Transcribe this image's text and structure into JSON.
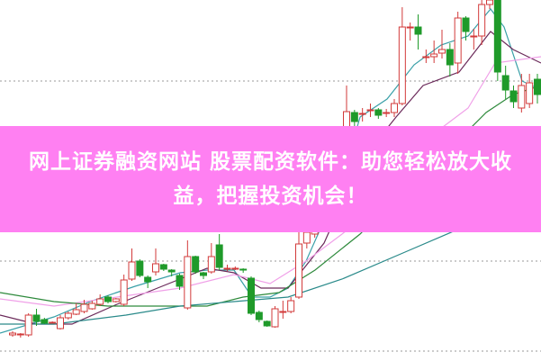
{
  "banner": {
    "line1": "网上证券融资网站 股票配资软件：助您轻松放大收",
    "line2": "益，把握投资机会！",
    "background": "#ff80f2"
  },
  "chart_data": {
    "type": "candlestick",
    "note_units": "relative price level (no axis printed)",
    "colors": {
      "up": "#d23a3a",
      "down": "#1f9a2a",
      "grid": "#999999"
    },
    "grid": "dotted horizontal",
    "gridlines": [
      310,
      110,
      10
    ],
    "candles": [
      {
        "o": 28,
        "c": 30,
        "h": 32,
        "l": 26
      },
      {
        "o": 28,
        "c": 29,
        "h": 30,
        "l": 25
      },
      {
        "o": 28,
        "c": 50,
        "h": 52,
        "l": 26
      },
      {
        "o": 50,
        "c": 43,
        "h": 57,
        "l": 38
      },
      {
        "o": 45,
        "c": 41,
        "h": 47,
        "l": 40
      },
      {
        "o": 42,
        "c": 42,
        "h": 43,
        "l": 41
      },
      {
        "o": 35,
        "c": 47,
        "h": 50,
        "l": 34
      },
      {
        "o": 47,
        "c": 52,
        "h": 54,
        "l": 45
      },
      {
        "o": 51,
        "c": 56,
        "h": 63,
        "l": 50
      },
      {
        "o": 54,
        "c": 62,
        "h": 67,
        "l": 52
      },
      {
        "o": 57,
        "c": 63,
        "h": 66,
        "l": 56
      },
      {
        "o": 62,
        "c": 68,
        "h": 73,
        "l": 60
      },
      {
        "o": 70,
        "c": 65,
        "h": 72,
        "l": 63
      },
      {
        "o": 65,
        "c": 68,
        "h": 69,
        "l": 64
      },
      {
        "o": 62,
        "c": 89,
        "h": 95,
        "l": 60
      },
      {
        "o": 90,
        "c": 109,
        "h": 124,
        "l": 88
      },
      {
        "o": 110,
        "c": 94,
        "h": 112,
        "l": 92
      },
      {
        "o": 92,
        "c": 87,
        "h": 94,
        "l": 80
      },
      {
        "o": 98,
        "c": 107,
        "h": 124,
        "l": 94
      },
      {
        "o": 106,
        "c": 101,
        "h": 107,
        "l": 99
      },
      {
        "o": 100,
        "c": 98,
        "h": 101,
        "l": 93
      },
      {
        "o": 94,
        "c": 82,
        "h": 96,
        "l": 78
      },
      {
        "o": 58,
        "c": 115,
        "h": 133,
        "l": 56
      },
      {
        "o": 115,
        "c": 98,
        "h": 116,
        "l": 96
      },
      {
        "o": 97,
        "c": 94,
        "h": 98,
        "l": 90
      },
      {
        "o": 98,
        "c": 115,
        "h": 130,
        "l": 96
      },
      {
        "o": 128,
        "c": 103,
        "h": 140,
        "l": 100
      },
      {
        "o": 102,
        "c": 102,
        "h": 106,
        "l": 99
      },
      {
        "o": 102,
        "c": 102,
        "h": 104,
        "l": 100
      },
      {
        "o": 101,
        "c": 100,
        "h": 102,
        "l": 97
      },
      {
        "o": 91,
        "c": 52,
        "h": 93,
        "l": 50
      },
      {
        "o": 53,
        "c": 45,
        "h": 55,
        "l": 42
      },
      {
        "o": 43,
        "c": 38,
        "h": 44,
        "l": 37
      },
      {
        "o": 37,
        "c": 57,
        "h": 60,
        "l": 36
      },
      {
        "o": 54,
        "c": 54,
        "h": 66,
        "l": 46
      },
      {
        "o": 54,
        "c": 66,
        "h": 70,
        "l": 52
      },
      {
        "o": 70,
        "c": 129,
        "h": 142,
        "l": 68
      },
      {
        "o": 130,
        "c": 142,
        "h": 150,
        "l": 124
      },
      {
        "o": 140,
        "c": 145,
        "h": 155,
        "l": 136
      },
      {
        "o": 160,
        "c": 180,
        "h": 200,
        "l": 150
      },
      {
        "o": 180,
        "c": 200,
        "h": 220,
        "l": 175
      },
      {
        "o": 195,
        "c": 220,
        "h": 250,
        "l": 190
      },
      {
        "o": 210,
        "c": 276,
        "h": 305,
        "l": 200
      },
      {
        "o": 275,
        "c": 265,
        "h": 278,
        "l": 260
      },
      {
        "o": 273,
        "c": 274,
        "h": 280,
        "l": 265
      },
      {
        "o": 278,
        "c": 278,
        "h": 285,
        "l": 270
      },
      {
        "o": 278,
        "c": 272,
        "h": 280,
        "l": 268
      },
      {
        "o": 275,
        "c": 275,
        "h": 279,
        "l": 270
      },
      {
        "o": 275,
        "c": 285,
        "h": 290,
        "l": 270
      },
      {
        "o": 285,
        "c": 370,
        "h": 392,
        "l": 283
      },
      {
        "o": 370,
        "c": 370,
        "h": 375,
        "l": 355
      },
      {
        "o": 370,
        "c": 362,
        "h": 384,
        "l": 345
      },
      {
        "o": 337,
        "c": 337,
        "h": 345,
        "l": 330
      },
      {
        "o": 337,
        "c": 340,
        "h": 355,
        "l": 330
      },
      {
        "o": 341,
        "c": 345,
        "h": 367,
        "l": 335
      },
      {
        "o": 345,
        "c": 328,
        "h": 352,
        "l": 315
      },
      {
        "o": 330,
        "c": 380,
        "h": 387,
        "l": 318
      },
      {
        "o": 380,
        "c": 365,
        "h": 382,
        "l": 355
      },
      {
        "o": 360,
        "c": 360,
        "h": 368,
        "l": 345
      },
      {
        "o": 360,
        "c": 395,
        "h": 400,
        "l": 350
      },
      {
        "o": 395,
        "c": 400,
        "h": 401,
        "l": 390
      },
      {
        "o": 400,
        "c": 320,
        "h": 401,
        "l": 310
      },
      {
        "o": 316,
        "c": 300,
        "h": 327,
        "l": 290
      },
      {
        "o": 299,
        "c": 287,
        "h": 305,
        "l": 280
      },
      {
        "o": 280,
        "c": 305,
        "h": 318,
        "l": 275
      },
      {
        "o": 285,
        "c": 308,
        "h": 318,
        "l": 280
      },
      {
        "o": 312,
        "c": 295,
        "h": 318,
        "l": 285
      }
    ],
    "moving_averages": [
      {
        "color": "#3aa0a8",
        "points": [
          [
            0,
            30
          ],
          [
            60,
            48
          ],
          [
            100,
            65
          ],
          [
            150,
            82
          ],
          [
            200,
            97
          ],
          [
            230,
            100
          ],
          [
            260,
            100
          ],
          [
            280,
            70
          ],
          [
            300,
            70
          ],
          [
            320,
            80
          ],
          [
            340,
            110
          ],
          [
            380,
            200
          ],
          [
            400,
            270
          ],
          [
            430,
            290
          ],
          [
            460,
            328
          ],
          [
            490,
            350
          ],
          [
            520,
            360
          ],
          [
            545,
            390
          ],
          [
            560,
            370
          ],
          [
            580,
            310
          ],
          [
            601,
            300
          ]
        ]
      },
      {
        "color": "#6b2a5a",
        "points": [
          [
            0,
            50
          ],
          [
            40,
            40
          ],
          [
            80,
            40
          ],
          [
            130,
            62
          ],
          [
            180,
            82
          ],
          [
            230,
            102
          ],
          [
            260,
            97
          ],
          [
            290,
            80
          ],
          [
            320,
            80
          ],
          [
            360,
            130
          ],
          [
            400,
            220
          ],
          [
            440,
            270
          ],
          [
            470,
            305
          ],
          [
            510,
            320
          ],
          [
            545,
            365
          ],
          [
            570,
            345
          ],
          [
            601,
            330
          ]
        ]
      },
      {
        "color": "#f0a0e8",
        "points": [
          [
            0,
            68
          ],
          [
            60,
            60
          ],
          [
            130,
            70
          ],
          [
            200,
            80
          ],
          [
            260,
            95
          ],
          [
            300,
            85
          ],
          [
            340,
            110
          ],
          [
            380,
            140
          ],
          [
            430,
            180
          ],
          [
            480,
            250
          ],
          [
            520,
            280
          ],
          [
            550,
            330
          ],
          [
            601,
            337
          ]
        ]
      },
      {
        "color": "#2e8a3c",
        "points": [
          [
            0,
            75
          ],
          [
            60,
            65
          ],
          [
            120,
            60
          ],
          [
            180,
            60
          ],
          [
            230,
            60
          ],
          [
            270,
            70
          ],
          [
            310,
            75
          ],
          [
            350,
            100
          ],
          [
            400,
            140
          ],
          [
            450,
            190
          ],
          [
            500,
            235
          ],
          [
            540,
            275
          ],
          [
            570,
            295
          ],
          [
            601,
            305
          ]
        ]
      },
      {
        "color": "#2a8a8a",
        "points": [
          [
            0,
            40
          ],
          [
            60,
            40
          ],
          [
            140,
            50
          ],
          [
            200,
            60
          ],
          [
            260,
            65
          ],
          [
            320,
            70
          ],
          [
            380,
            90
          ],
          [
            450,
            120
          ],
          [
            520,
            150
          ],
          [
            570,
            178
          ],
          [
            601,
            190
          ]
        ]
      }
    ]
  }
}
